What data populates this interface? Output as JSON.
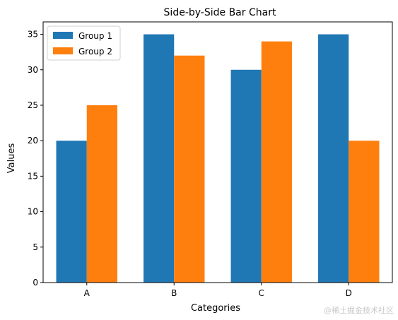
{
  "chart_data": {
    "type": "bar",
    "title": "Side-by-Side Bar Chart",
    "xlabel": "Categories",
    "ylabel": "Values",
    "categories": [
      "A",
      "B",
      "C",
      "D"
    ],
    "series": [
      {
        "name": "Group 1",
        "values": [
          20,
          35,
          30,
          35
        ],
        "color": "#1f77b4"
      },
      {
        "name": "Group 2",
        "values": [
          25,
          32,
          34,
          20
        ],
        "color": "#ff7f0e"
      }
    ],
    "ylim": [
      0,
      36.75
    ],
    "yticks": [
      0,
      5,
      10,
      15,
      20,
      25,
      30,
      35
    ],
    "grid": false,
    "legend_position": "top-left"
  },
  "watermark": "@稀土掘金技术社区"
}
